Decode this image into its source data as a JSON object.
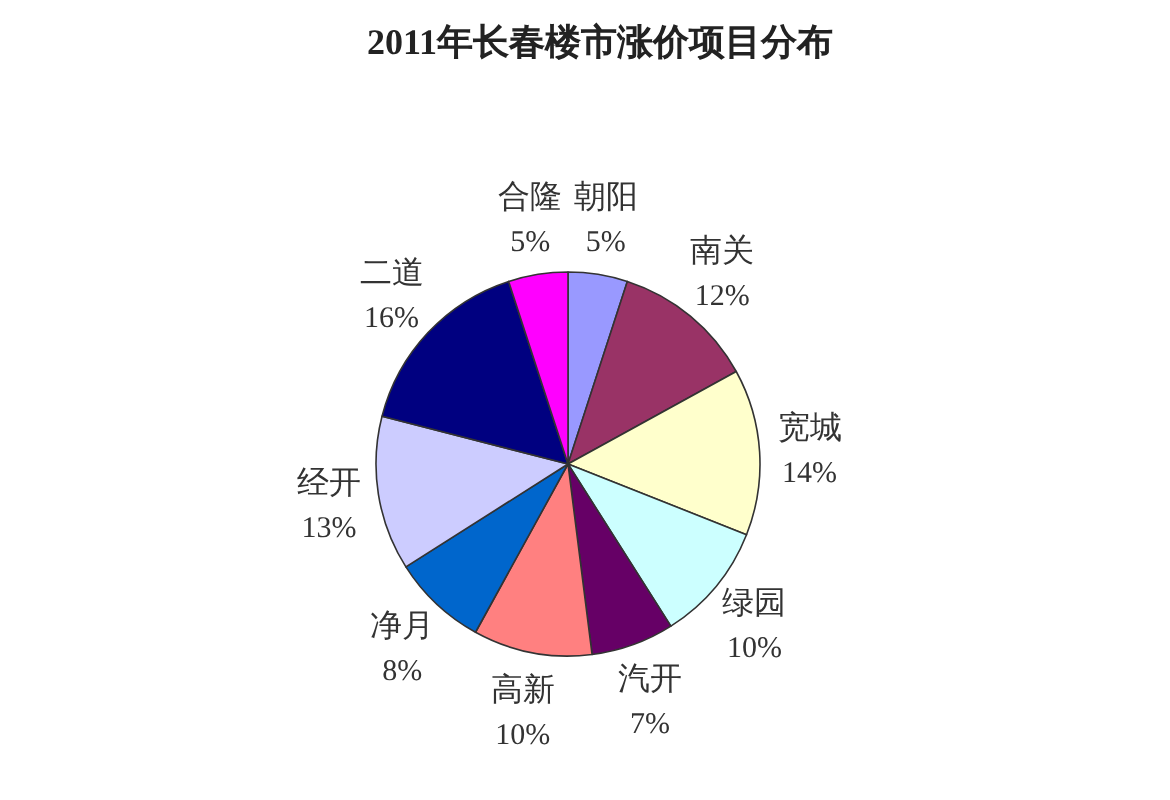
{
  "chart_data": {
    "type": "pie",
    "title": "2011年长春楼市涨价项目分布",
    "categories": [
      "朝阳",
      "南关",
      "宽城",
      "绿园",
      "汽开",
      "高新",
      "净月",
      "经开",
      "二道",
      "合隆"
    ],
    "values": [
      5,
      12,
      14,
      10,
      7,
      10,
      8,
      13,
      16,
      5
    ],
    "value_labels": [
      "5%",
      "12%",
      "14%",
      "10%",
      "7%",
      "10%",
      "8%",
      "13%",
      "16%",
      "5%"
    ],
    "colors": [
      "#9999ff",
      "#993366",
      "#ffffcc",
      "#ccffff",
      "#660066",
      "#ff8080",
      "#0066cc",
      "#ccccff",
      "#000080",
      "#ff00ff"
    ]
  }
}
